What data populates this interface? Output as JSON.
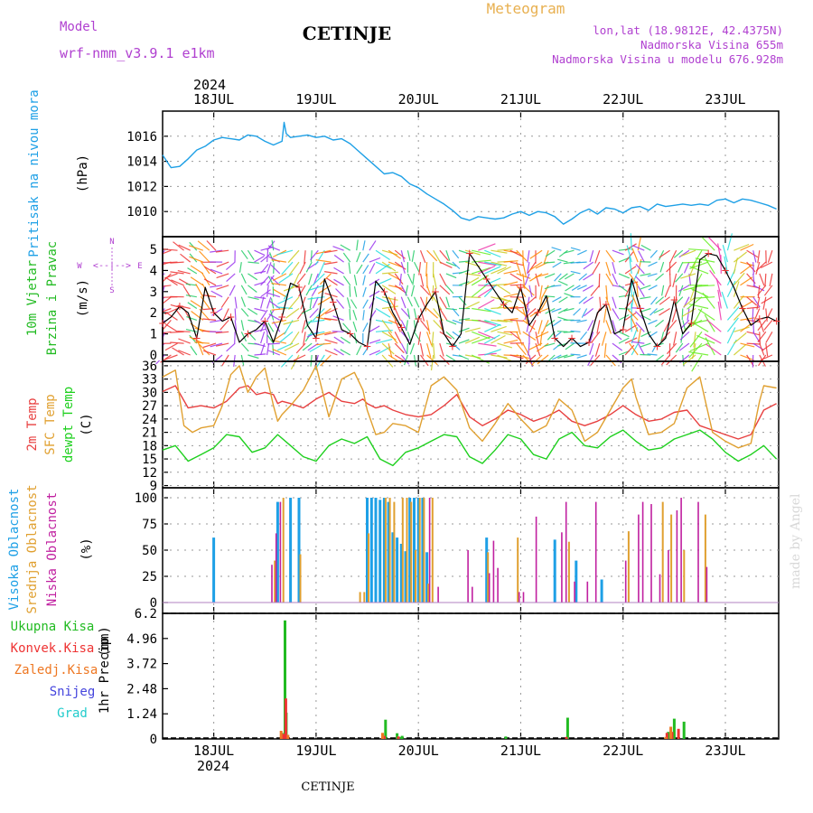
{
  "header": {
    "model_label": "Model",
    "model_name": "wrf-nmm_v3.9.1  e1km",
    "title": "CETINJE",
    "meteogram": "Meteogram",
    "lonlat": "lon,lat (18.9812E, 42.4375N)",
    "elevation": "Nadmorska Visina 655m",
    "model_elevation": "Nadmorska Visina u modelu 676.928m",
    "year": "2024",
    "footer_title": "CETINJE",
    "watermark": "made by Angel"
  },
  "colors": {
    "pressure": "#1ea0e6",
    "wind_speed": "#000000",
    "temp2m": "#e84040",
    "sfc_temp": "#e0a030",
    "dewpoint": "#1ed01e",
    "high_cloud": "#1ea0e6",
    "mid_cloud": "#e0a030",
    "low_cloud": "#c020a0",
    "total_precip": "#22bb22",
    "conv_precip": "#ee3333",
    "frozen_precip": "#ee7722",
    "snow": "#4444dd",
    "graupel": "#22cccc",
    "label_purple": "#b040d0",
    "label_orange": "#e8b050"
  },
  "chart_data": [
    {
      "type": "line",
      "panel": "pressure",
      "ylabel": "Pritisak na nivou mora",
      "unit": "(hPa)",
      "x_unit": "hours from 2024-07-17 12:00",
      "ylim": [
        1008,
        1018
      ],
      "yticks": [
        1010,
        1012,
        1014,
        1016
      ],
      "grid": true,
      "series": [
        {
          "x": [
            0,
            2,
            4,
            6,
            8,
            10,
            12,
            14,
            16,
            18,
            20,
            22,
            24,
            26,
            28,
            28.5,
            29,
            30,
            32,
            34,
            36,
            38,
            40,
            42,
            44,
            46,
            48,
            50,
            52,
            54,
            56,
            58,
            60,
            62,
            64,
            66,
            68,
            70,
            72,
            74,
            76,
            78,
            80,
            82,
            84,
            86,
            88,
            90,
            92,
            94,
            96,
            98,
            100,
            102,
            104,
            106,
            108,
            110,
            112,
            114,
            116,
            118,
            120,
            122,
            124,
            126,
            128,
            130,
            132,
            134,
            136,
            138,
            140,
            142,
            144
          ],
          "values": [
            1014.5,
            1013.5,
            1013.6,
            1014.2,
            1014.9,
            1015.2,
            1015.7,
            1015.9,
            1015.8,
            1015.7,
            1016.1,
            1016.0,
            1015.6,
            1015.3,
            1015.6,
            1017.1,
            1016.2,
            1015.9,
            1016.0,
            1016.1,
            1015.9,
            1016.0,
            1015.7,
            1015.8,
            1015.4,
            1014.8,
            1014.2,
            1013.6,
            1013.0,
            1013.1,
            1012.8,
            1012.2,
            1011.9,
            1011.4,
            1011.0,
            1010.6,
            1010.1,
            1009.5,
            1009.3,
            1009.6,
            1009.5,
            1009.4,
            1009.5,
            1009.8,
            1010.0,
            1009.7,
            1010.0,
            1009.9,
            1009.6,
            1009.0,
            1009.4,
            1009.9,
            1010.2,
            1009.8,
            1010.3,
            1010.2,
            1009.9,
            1010.3,
            1010.4,
            1010.1,
            1010.6,
            1010.4,
            1010.5,
            1010.6,
            1010.5,
            1010.6,
            1010.5,
            1010.9,
            1011.0,
            1010.7,
            1011.0,
            1010.9,
            1010.7,
            1010.5,
            1010.2
          ]
        }
      ]
    },
    {
      "type": "line",
      "panel": "wind",
      "ylabel": "10m Vjetar",
      "ylabel2": "Brzina i Pravac",
      "unit": "(m/s)",
      "compass": {
        "n": "N",
        "s": "S",
        "e": "E",
        "w": "W",
        "arrow": "<--|-->"
      },
      "ylim": [
        -0.3,
        5.6
      ],
      "yticks": [
        0,
        1,
        2,
        3,
        4,
        5
      ],
      "series": [
        {
          "name": "Brzina",
          "x": [
            0,
            2,
            4,
            6,
            8,
            10,
            12,
            14,
            16,
            18,
            20,
            22,
            24,
            26,
            28,
            30,
            32,
            34,
            36,
            38,
            40,
            42,
            44,
            46,
            48,
            50,
            52,
            54,
            56,
            58,
            60,
            62,
            64,
            66,
            68,
            70,
            72,
            74,
            76,
            78,
            80,
            82,
            84,
            86,
            88,
            90,
            92,
            94,
            96,
            98,
            100,
            102,
            104,
            106,
            108,
            110,
            112,
            114,
            116,
            118,
            120,
            122,
            124,
            126,
            128,
            130,
            132,
            134,
            136,
            138,
            140,
            142,
            144
          ],
          "values": [
            1.5,
            1.8,
            2.3,
            2.0,
            0.8,
            3.2,
            2.0,
            1.6,
            1.8,
            0.6,
            1.0,
            1.2,
            1.6,
            0.6,
            1.8,
            3.4,
            3.2,
            1.4,
            0.8,
            3.6,
            2.5,
            1.2,
            1.0,
            0.6,
            0.4,
            3.5,
            3.0,
            2.0,
            1.3,
            0.5,
            1.7,
            2.4,
            3.0,
            1.0,
            0.4,
            1.0,
            4.8,
            4.2,
            3.6,
            3.0,
            2.4,
            2.0,
            3.2,
            1.4,
            2.0,
            2.8,
            0.8,
            0.4,
            0.8,
            0.4,
            0.6,
            2.0,
            2.4,
            1.0,
            1.2,
            3.6,
            2.2,
            1.0,
            0.4,
            0.8,
            2.6,
            1.0,
            1.5,
            4.5,
            4.8,
            4.7,
            4.0,
            3.2,
            2.2,
            1.4,
            1.7,
            1.8,
            1.6
          ]
        }
      ]
    },
    {
      "type": "line",
      "panel": "temperature",
      "ylabel": "2m Temp",
      "ylabel2": "SFC Temp",
      "ylabel3": "dewpt Temp",
      "unit": "(C)",
      "ylim": [
        8.5,
        37
      ],
      "yticks": [
        9,
        12,
        15,
        18,
        21,
        24,
        27,
        30,
        33,
        36
      ],
      "grid": true,
      "series": [
        {
          "name": "2m Temp",
          "x": [
            0,
            3,
            6,
            9,
            12,
            15,
            18,
            20,
            22,
            24,
            26,
            27,
            28,
            30,
            33,
            36,
            39,
            42,
            45,
            47,
            48,
            50,
            52,
            54,
            57,
            60,
            63,
            66,
            69,
            72,
            75,
            78,
            81,
            84,
            87,
            90,
            93,
            96,
            99,
            102,
            105,
            108,
            111,
            114,
            117,
            120,
            123,
            126,
            129,
            132,
            135,
            138,
            141,
            144
          ],
          "values": [
            30.2,
            31.5,
            26.5,
            27.0,
            26.5,
            28.0,
            31.0,
            31.5,
            29.5,
            30.0,
            29.5,
            27.5,
            28.0,
            27.5,
            26.5,
            28.5,
            30.0,
            28.0,
            27.5,
            28.5,
            27.5,
            26.5,
            27.0,
            26.0,
            25.0,
            24.5,
            25.0,
            27.0,
            29.5,
            24.5,
            22.5,
            24.0,
            26.0,
            25.0,
            23.5,
            24.5,
            26.0,
            23.5,
            22.5,
            23.5,
            25.0,
            27.0,
            25.0,
            23.5,
            24.0,
            25.5,
            26.0,
            22.5,
            21.5,
            20.5,
            19.5,
            20.5,
            26.0,
            27.5
          ]
        },
        {
          "name": "SFC Temp",
          "x": [
            0,
            3,
            5,
            7,
            9,
            12,
            14,
            16,
            18,
            20,
            22,
            24,
            26,
            27,
            28,
            30,
            33,
            36,
            39,
            42,
            45,
            47,
            48,
            50,
            52,
            54,
            57,
            60,
            63,
            66,
            69,
            72,
            75,
            78,
            80,
            81,
            84,
            87,
            90,
            93,
            96,
            99,
            102,
            105,
            108,
            110,
            111,
            114,
            117,
            120,
            123,
            126,
            129,
            132,
            135,
            138,
            140,
            141,
            144
          ],
          "values": [
            33.5,
            35.0,
            22.5,
            21.0,
            22.0,
            22.5,
            27.0,
            34.0,
            36.0,
            30.0,
            33.5,
            35.5,
            27.0,
            23.5,
            25.0,
            27.0,
            30.5,
            36.0,
            24.5,
            33.0,
            34.5,
            30.5,
            26.0,
            20.5,
            21.0,
            23.0,
            22.5,
            21.0,
            31.5,
            33.5,
            30.5,
            22.0,
            19.0,
            23.0,
            26.0,
            27.5,
            24.0,
            21.0,
            22.5,
            28.5,
            26.0,
            19.0,
            21.0,
            26.0,
            31.0,
            33.0,
            29.0,
            20.5,
            21.0,
            23.0,
            31.0,
            33.5,
            21.0,
            19.0,
            17.5,
            18.5,
            28.0,
            31.5,
            31.0
          ]
        },
        {
          "name": "dewpt Temp",
          "x": [
            0,
            3,
            6,
            9,
            12,
            15,
            18,
            21,
            24,
            27,
            30,
            33,
            36,
            39,
            42,
            45,
            48,
            51,
            54,
            57,
            60,
            63,
            66,
            69,
            72,
            75,
            78,
            81,
            84,
            87,
            90,
            93,
            96,
            99,
            102,
            105,
            108,
            111,
            114,
            117,
            120,
            123,
            126,
            129,
            132,
            135,
            138,
            141,
            144
          ],
          "values": [
            17.0,
            18.0,
            14.5,
            16.0,
            17.5,
            20.5,
            20.0,
            16.5,
            17.5,
            20.5,
            18.0,
            15.5,
            14.5,
            18.0,
            19.5,
            18.5,
            20.0,
            15.0,
            13.5,
            16.5,
            17.5,
            19.0,
            20.5,
            20.0,
            15.5,
            14.0,
            17.0,
            20.5,
            19.5,
            16.0,
            15.0,
            19.5,
            21.0,
            18.0,
            17.5,
            20.0,
            21.5,
            19.0,
            17.0,
            17.5,
            19.5,
            20.5,
            21.5,
            19.5,
            16.5,
            14.5,
            16.0,
            18.0,
            15.0
          ]
        }
      ]
    },
    {
      "type": "bar",
      "panel": "clouds",
      "ylabel": "Visoka Oblacnost",
      "ylabel2": "Srednja Oblacnost",
      "ylabel3": "Niska Oblacnost",
      "unit": "(%)",
      "ylim": [
        0,
        100
      ],
      "yticks": [
        0,
        25,
        50,
        75,
        100
      ],
      "series": [
        {
          "name": "Visoka Oblacnost",
          "x": [
            0,
            12,
            24,
            27,
            30,
            32,
            48,
            49,
            50,
            51,
            52,
            53,
            54,
            55,
            56,
            57,
            58,
            59,
            60,
            61,
            62,
            63,
            64,
            65,
            66,
            67,
            73,
            76,
            92,
            97,
            103,
            104,
            117,
            127
          ],
          "values": [
            0,
            62,
            0,
            96,
            100,
            100,
            100,
            100,
            100,
            98,
            100,
            96,
            67,
            62,
            56,
            49,
            100,
            100,
            100,
            100,
            48,
            0,
            0,
            0,
            0,
            0,
            0,
            62,
            60,
            40,
            22,
            0,
            0,
            0
          ]
        },
        {
          "name": "Srednja Oblacnost",
          "x": [
            0,
            24,
            26,
            28,
            32,
            46,
            47,
            48,
            52,
            53,
            54,
            56,
            57,
            58,
            59,
            60,
            61,
            62,
            63,
            64,
            65,
            66,
            67,
            68,
            73,
            74,
            76,
            83,
            95,
            97,
            109,
            117,
            119,
            122,
            127
          ],
          "values": [
            0,
            0,
            40,
            100,
            46,
            10,
            10,
            66,
            100,
            100,
            96,
            100,
            100,
            96,
            50,
            100,
            100,
            18,
            100,
            0,
            0,
            0,
            0,
            0,
            0,
            0,
            48,
            62,
            58,
            0,
            68,
            96,
            84,
            50,
            84
          ]
        },
        {
          "name": "Niska Oblacnost",
          "x": [
            0,
            25,
            26,
            27,
            62,
            64,
            71,
            72,
            76,
            77,
            78,
            83,
            84,
            87,
            93,
            94,
            96,
            99,
            101,
            108,
            111,
            112,
            114,
            116,
            118,
            120,
            121,
            122,
            125,
            127,
            128
          ],
          "values": [
            0,
            36,
            66,
            96,
            100,
            15,
            50,
            15,
            28,
            59,
            33,
            10,
            10,
            82,
            67,
            96,
            20,
            20,
            96,
            40,
            84,
            96,
            94,
            27,
            50,
            88,
            100,
            0,
            96,
            34,
            0
          ]
        }
      ]
    },
    {
      "type": "bar",
      "panel": "precip",
      "ylabel": "1hr Precip",
      "unit": "(mm)",
      "ylim": [
        0,
        6.2
      ],
      "yticks": [
        0,
        1.24,
        2.48,
        3.72,
        4.96,
        6.2
      ],
      "ytick_labels": [
        "0",
        "1.24",
        "2.48",
        "3.72",
        "4.96",
        "6.2"
      ],
      "legend": [
        "Ukupna  Kisa",
        "Konvek.Kisa",
        "Zaledj.Kisa",
        "Snijeg",
        "Grad"
      ],
      "series": [
        {
          "name": "Ukupna Kisa",
          "x": [
            28,
            28.7,
            29,
            52.3,
            55,
            55.6,
            56.2,
            80.5,
            95,
            118.6,
            120,
            122.3
          ],
          "values": [
            0.3,
            5.85,
            1.3,
            0.95,
            0.28,
            0.1,
            0.15,
            0.12,
            1.05,
            0.35,
            1.0,
            0.85
          ]
        },
        {
          "name": "Konvek.Kisa",
          "x": [
            28.3,
            28.9,
            52,
            55.3,
            94.7,
            118.3,
            119.5,
            121
          ],
          "values": [
            0.25,
            2.0,
            0.15,
            0.12,
            0.1,
            0.3,
            0.35,
            0.5
          ]
        },
        {
          "name": "Zaledj.Kisa",
          "x": [
            27.8,
            29.4,
            51.6,
            118,
            119.2
          ],
          "values": [
            0.4,
            0.2,
            0.3,
            0.1,
            0.6
          ]
        }
      ]
    }
  ],
  "time_axis": {
    "top_year": "2024",
    "bottom_year": "2024",
    "day_labels": [
      "18JUL",
      "19JUL",
      "20JUL",
      "21JUL",
      "22JUL",
      "23JUL"
    ]
  }
}
